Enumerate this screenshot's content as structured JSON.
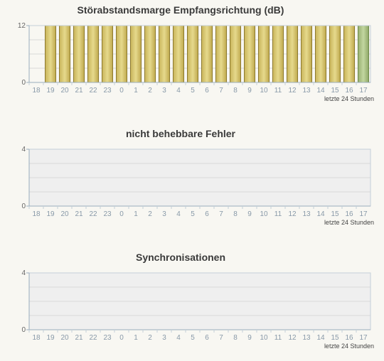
{
  "chart_data": [
    {
      "type": "bar",
      "title": "Störabstandsmarge Empfangsrichtung (dB)",
      "xlabel": "letzte 24 Stunden",
      "ylabel": "",
      "categories": [
        "18",
        "19",
        "20",
        "21",
        "22",
        "23",
        "0",
        "1",
        "2",
        "3",
        "4",
        "5",
        "6",
        "7",
        "8",
        "9",
        "10",
        "11",
        "12",
        "13",
        "14",
        "15",
        "16",
        "17"
      ],
      "values": [
        null,
        12,
        12,
        12,
        12,
        12,
        12,
        12,
        12,
        12,
        12,
        12,
        12,
        12,
        12,
        12,
        12,
        12,
        12,
        12,
        12,
        12,
        12,
        12
      ],
      "ylim": [
        0,
        12
      ],
      "yticks": [
        0,
        12
      ],
      "grid": true,
      "colors": {
        "bar": "#d4c06a",
        "current_bar": "#a9c08a",
        "plot_bg": "#f8f7f2"
      }
    },
    {
      "type": "bar",
      "title": "nicht behebbare Fehler",
      "xlabel": "letzte 24 Stunden",
      "ylabel": "",
      "categories": [
        "18",
        "19",
        "20",
        "21",
        "22",
        "23",
        "0",
        "1",
        "2",
        "3",
        "4",
        "5",
        "6",
        "7",
        "8",
        "9",
        "10",
        "11",
        "12",
        "13",
        "14",
        "15",
        "16",
        "17"
      ],
      "values": [
        0,
        0,
        0,
        0,
        0,
        0,
        0,
        0,
        0,
        0,
        0,
        0,
        0,
        0,
        0,
        0,
        0,
        0,
        0,
        0,
        0,
        0,
        0,
        0
      ],
      "ylim": [
        0,
        4
      ],
      "yticks": [
        0,
        4
      ],
      "grid": true,
      "colors": {
        "plot_bg": "#efefef"
      }
    },
    {
      "type": "bar",
      "title": "Synchronisationen",
      "xlabel": "letzte 24 Stunden",
      "ylabel": "",
      "categories": [
        "18",
        "19",
        "20",
        "21",
        "22",
        "23",
        "0",
        "1",
        "2",
        "3",
        "4",
        "5",
        "6",
        "7",
        "8",
        "9",
        "10",
        "11",
        "12",
        "13",
        "14",
        "15",
        "16",
        "17"
      ],
      "values": [
        0,
        0,
        0,
        0,
        0,
        0,
        0,
        0,
        0,
        0,
        0,
        0,
        0,
        0,
        0,
        0,
        0,
        0,
        0,
        0,
        0,
        0,
        0,
        0
      ],
      "ylim": [
        0,
        4
      ],
      "yticks": [
        0,
        4
      ],
      "grid": true,
      "colors": {
        "plot_bg": "#efefef"
      }
    }
  ]
}
